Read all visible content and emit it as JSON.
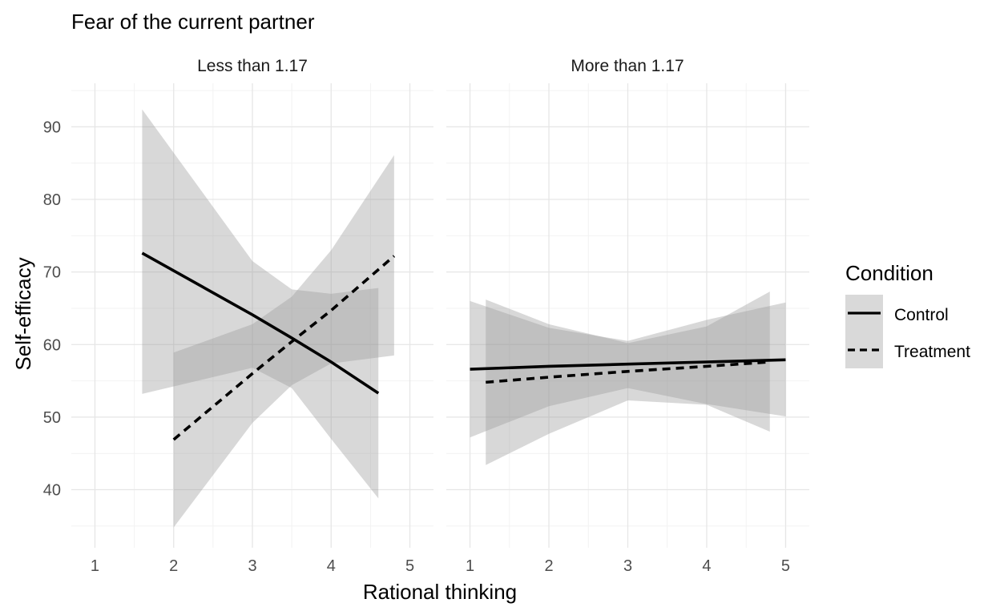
{
  "title": "Fear of the current partner",
  "chart_data": {
    "type": "line",
    "xlabel": "Rational thinking",
    "ylabel": "Self-efficacy",
    "xlim": [
      0.7,
      5.3
    ],
    "ylim": [
      32,
      96
    ],
    "x_ticks": [
      1,
      2,
      3,
      4,
      5
    ],
    "y_ticks": [
      40,
      50,
      60,
      70,
      80,
      90
    ],
    "grid": true,
    "legend": {
      "title": "Condition",
      "position": "right",
      "entries": [
        {
          "label": "Control",
          "linetype": "solid"
        },
        {
          "label": "Treatment",
          "linetype": "dashed"
        }
      ]
    },
    "panels": [
      {
        "label": "Less than 1.17",
        "series": [
          {
            "name": "Control",
            "linetype": "solid",
            "x": [
              1.6,
              3.0,
              3.5,
              4.0,
              4.6
            ],
            "y": [
              72.6,
              64.1,
              60.9,
              57.6,
              53.3
            ],
            "lower": [
              53.2,
              56.8,
              54.0,
              47.0,
              38.8
            ],
            "upper": [
              92.4,
              71.5,
              67.6,
              67.0,
              67.8
            ]
          },
          {
            "name": "Treatment",
            "linetype": "dashed",
            "x": [
              2.0,
              3.0,
              3.5,
              4.0,
              4.8
            ],
            "y": [
              46.9,
              56.0,
              60.4,
              64.7,
              72.2
            ],
            "lower": [
              34.8,
              49.2,
              54.4,
              57.4,
              58.5
            ],
            "upper": [
              58.9,
              62.8,
              66.6,
              73.0,
              86.1
            ]
          }
        ]
      },
      {
        "label": "More than 1.17",
        "series": [
          {
            "name": "Control",
            "linetype": "solid",
            "x": [
              1.0,
              2.0,
              3.0,
              4.0,
              5.0
            ],
            "y": [
              56.6,
              57.0,
              57.3,
              57.6,
              57.9
            ],
            "lower": [
              47.2,
              51.5,
              54.0,
              51.8,
              50.1
            ],
            "upper": [
              66.0,
              62.3,
              60.5,
              63.4,
              65.8
            ]
          },
          {
            "name": "Treatment",
            "linetype": "dashed",
            "x": [
              1.2,
              2.0,
              3.0,
              4.0,
              4.8
            ],
            "y": [
              54.8,
              55.5,
              56.3,
              57.0,
              57.6
            ],
            "lower": [
              43.4,
              47.7,
              52.3,
              51.7,
              48.0
            ],
            "upper": [
              66.2,
              62.8,
              60.2,
              62.5,
              67.3
            ]
          }
        ]
      }
    ]
  }
}
